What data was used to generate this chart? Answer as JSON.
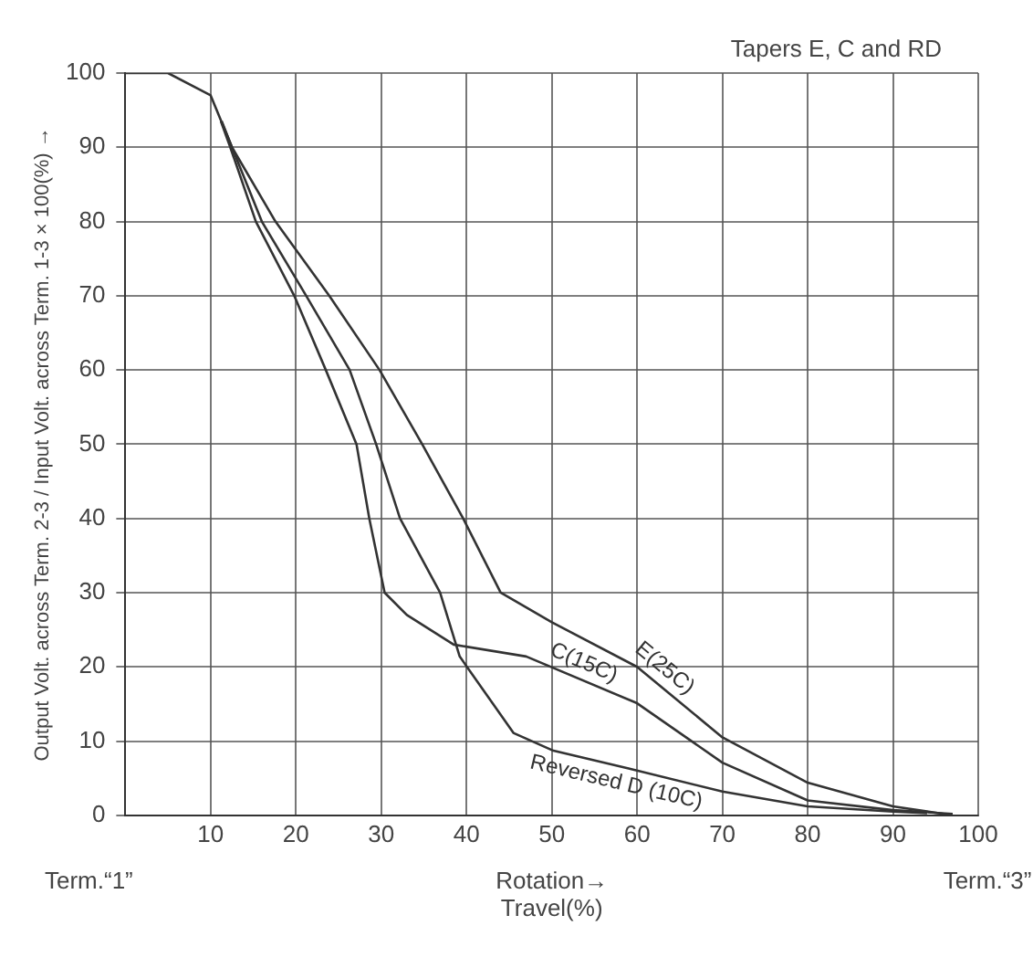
{
  "chart_data": {
    "type": "line",
    "title": "Tapers E, C and RD",
    "xlabel": "Rotation→\nTravel(%)",
    "ylabel": "Output Volt. across Term. 2-3 / Input Volt. across Term. 1-3 × 100(%) →",
    "annotations": [
      "Term.“1”",
      "Term.“3”"
    ],
    "xlim": [
      0,
      100
    ],
    "ylim": [
      0,
      100
    ],
    "xticks": [
      {
        "value": 0,
        "label": null
      },
      10,
      20,
      30,
      40,
      50,
      60,
      70,
      80,
      90,
      100
    ],
    "yticks": [
      0,
      10,
      20,
      30,
      40,
      50,
      60,
      70,
      80,
      90,
      100
    ],
    "grid": true,
    "legend": false,
    "marker": "none",
    "line_style": "solid",
    "series": [
      {
        "name": "E(25C)",
        "color": "#333333",
        "x": [
          0,
          5,
          10,
          12.5,
          17.6,
          23.9,
          29.8,
          34.8,
          39.6,
          44,
          50,
          60,
          70,
          80,
          90,
          97
        ],
        "values": [
          100,
          100,
          97,
          90,
          80,
          70,
          60,
          50,
          40,
          30,
          26,
          20,
          10.5,
          4.4,
          1.2,
          0
        ]
      },
      {
        "name": "C(15C)",
        "color": "#333333",
        "x": [
          11.2,
          12.3,
          15.3,
          19.8,
          23.5,
          27.1,
          28.6,
          30.4,
          33,
          38.5,
          47,
          60,
          70,
          80,
          90,
          97
        ],
        "values": [
          93.5,
          90,
          80,
          70,
          60,
          50,
          40,
          30,
          27,
          23,
          21.4,
          15.1,
          7.1,
          2,
          0.7,
          0.2
        ]
      },
      {
        "name": "Reversed D (10C)",
        "color": "#333333",
        "x": [
          11.3,
          12.5,
          16,
          21.2,
          26.3,
          29.4,
          32.2,
          36.9,
          39.2,
          45.5,
          50.2,
          59,
          70,
          80,
          90,
          94
        ],
        "values": [
          93.5,
          90,
          80,
          70,
          60,
          50,
          40,
          30,
          21.4,
          11.1,
          8.7,
          6.3,
          3.2,
          1.2,
          0.5,
          0.3
        ]
      }
    ]
  }
}
